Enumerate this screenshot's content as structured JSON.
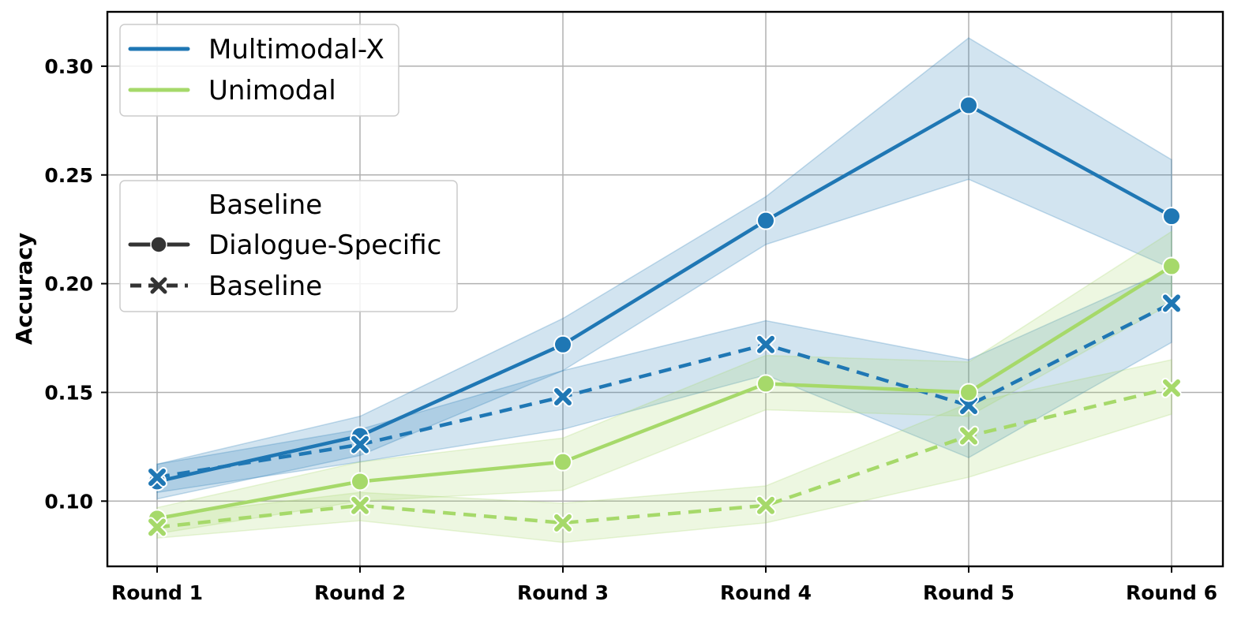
{
  "chart_data": {
    "type": "line",
    "title": "",
    "xlabel": "",
    "ylabel": "Accuracy",
    "categories": [
      "Round 1",
      "Round 2",
      "Round 3",
      "Round 4",
      "Round 5",
      "Round 6"
    ],
    "yticks": [
      "0.10",
      "0.15",
      "0.20",
      "0.25",
      "0.30"
    ],
    "ylim": [
      0.07,
      0.325
    ],
    "grid": true,
    "series": [
      {
        "name": "Multimodal-X",
        "style": "Dialogue-Specific",
        "color": "#1f77b4",
        "line": "solid",
        "marker": "circle",
        "values": [
          0.109,
          0.13,
          0.172,
          0.229,
          0.282,
          0.231
        ],
        "ci_low": [
          0.101,
          0.121,
          0.16,
          0.218,
          0.248,
          0.207
        ],
        "ci_high": [
          0.117,
          0.139,
          0.184,
          0.24,
          0.313,
          0.257
        ]
      },
      {
        "name": "Multimodal-X",
        "style": "Baseline",
        "color": "#1f77b4",
        "line": "dashed",
        "marker": "x",
        "values": [
          0.111,
          0.126,
          0.148,
          0.172,
          0.144,
          0.191
        ],
        "ci_low": [
          0.104,
          0.118,
          0.133,
          0.158,
          0.12,
          0.173
        ],
        "ci_high": [
          0.117,
          0.133,
          0.16,
          0.183,
          0.165,
          0.207
        ]
      },
      {
        "name": "Unimodal",
        "style": "Dialogue-Specific",
        "color": "#a6d96a",
        "line": "solid",
        "marker": "circle",
        "values": [
          0.092,
          0.109,
          0.118,
          0.154,
          0.15,
          0.208
        ],
        "ci_low": [
          0.085,
          0.1,
          0.105,
          0.142,
          0.139,
          0.191
        ],
        "ci_high": [
          0.097,
          0.118,
          0.129,
          0.167,
          0.164,
          0.224
        ]
      },
      {
        "name": "Unimodal",
        "style": "Baseline",
        "color": "#a6d96a",
        "line": "dashed",
        "marker": "x",
        "values": [
          0.088,
          0.098,
          0.09,
          0.098,
          0.13,
          0.152
        ],
        "ci_low": [
          0.083,
          0.091,
          0.081,
          0.09,
          0.111,
          0.14
        ],
        "ci_high": [
          0.093,
          0.104,
          0.099,
          0.107,
          0.145,
          0.165
        ]
      }
    ],
    "legends": [
      {
        "placement": "top-left",
        "entries": [
          {
            "label": "Multimodal-X",
            "color": "#1f77b4"
          },
          {
            "label": "Unimodal",
            "color": "#a6d96a"
          }
        ]
      },
      {
        "placement": "upper-left",
        "title": "Baseline",
        "entries": [
          {
            "label": "Dialogue-Specific",
            "line": "solid",
            "marker": "circle"
          },
          {
            "label": "Baseline",
            "line": "dashed",
            "marker": "x"
          }
        ]
      }
    ]
  }
}
